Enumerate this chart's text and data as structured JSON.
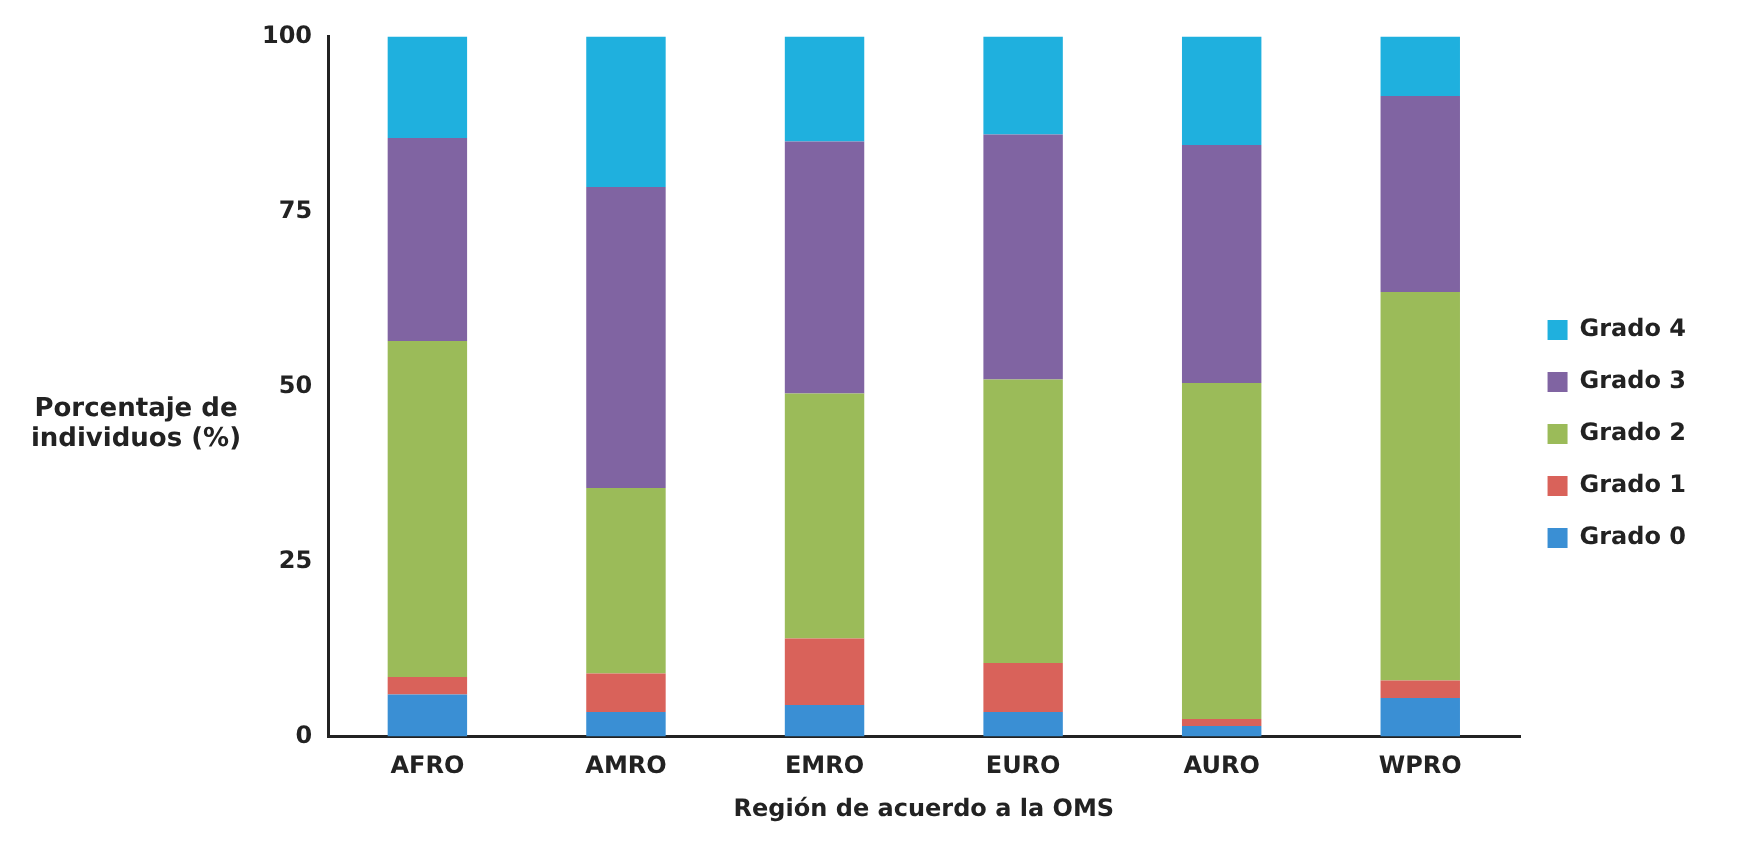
{
  "chart_data": {
    "type": "bar",
    "stacked": true,
    "xlabel": "Región de acuerdo a la OMS",
    "ylabel": "Porcentaje de individuos (%)",
    "categories": [
      "AFRO",
      "AMRO",
      "EMRO",
      "EURO",
      "AURO",
      "WPRO"
    ],
    "series": [
      {
        "name": "Grado 0",
        "color": "#3a8fd4",
        "values": [
          6,
          3.5,
          4.5,
          3.5,
          1.5,
          5.5
        ]
      },
      {
        "name": "Grado 1",
        "color": "#d9625a",
        "values": [
          2.5,
          5.5,
          9.5,
          7,
          1,
          2.5
        ]
      },
      {
        "name": "Grado 2",
        "color": "#9bbb59",
        "values": [
          48,
          26.5,
          35,
          40.5,
          48,
          55.5
        ]
      },
      {
        "name": "Grado 3",
        "color": "#8064a2",
        "values": [
          29,
          43,
          36,
          35,
          34,
          28
        ]
      },
      {
        "name": "Grado 4",
        "color": "#1fb0de",
        "values": [
          14.5,
          21.5,
          15,
          14,
          15.5,
          8.5
        ]
      }
    ],
    "ylim": [
      0,
      100
    ],
    "yticks": [
      0,
      25,
      50,
      75,
      100
    ],
    "grid": false,
    "legend": "right"
  }
}
